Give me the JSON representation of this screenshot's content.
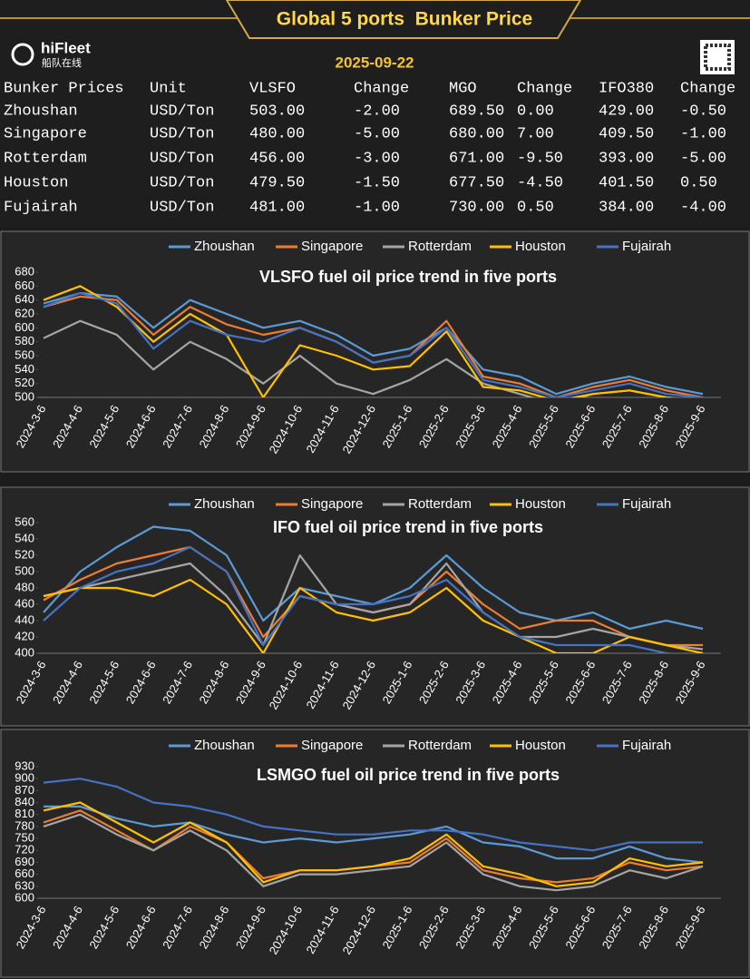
{
  "header": {
    "title": "Global 5 ports  Bunker Price",
    "logo": "hiFleet",
    "logo_sub": "船队在线",
    "date": "2025-09-22"
  },
  "table": {
    "headers": [
      "Bunker Prices",
      "Unit",
      "VLSFO",
      "Change",
      "MGO",
      "Change",
      "IFO380",
      "Change"
    ],
    "rows": [
      [
        "Zhoushan",
        "USD/Ton",
        "503.00",
        "-2.00",
        "689.50",
        "0.00",
        "429.00",
        "-0.50"
      ],
      [
        "Singapore",
        "USD/Ton",
        "480.00",
        "-5.00",
        "680.00",
        "7.00",
        "409.50",
        "-1.00"
      ],
      [
        "Rotterdam",
        "USD/Ton",
        "456.00",
        "-3.00",
        "671.00",
        "-9.50",
        "393.00",
        "-5.00"
      ],
      [
        "Houston",
        "USD/Ton",
        "479.50",
        "-1.50",
        "677.50",
        "-4.50",
        "401.50",
        "0.50"
      ],
      [
        "Fujairah",
        "USD/Ton",
        "481.00",
        "-1.00",
        "730.00",
        "0.50",
        "384.00",
        "-4.00"
      ]
    ]
  },
  "chart_data": [
    {
      "type": "line",
      "title": "VLSFO fuel oil price trend in five ports",
      "categories": [
        "2024-3-6",
        "2024-4-6",
        "2024-5-6",
        "2024-6-6",
        "2024-7-6",
        "2024-8-6",
        "2024-9-6",
        "2024-10-6",
        "2024-11-6",
        "2024-12-6",
        "2025-1-6",
        "2025-2-6",
        "2025-3-6",
        "2025-4-6",
        "2025-5-6",
        "2025-6-6",
        "2025-7-6",
        "2025-8-6",
        "2025-9-6"
      ],
      "ylim": [
        500,
        680
      ],
      "yticks": [
        500,
        520,
        540,
        560,
        580,
        600,
        620,
        640,
        660,
        680
      ],
      "series": [
        {
          "name": "Zhoushan",
          "color": "#5b9bd5",
          "values": [
            635,
            650,
            645,
            600,
            640,
            620,
            600,
            610,
            590,
            560,
            570,
            600,
            540,
            530,
            505,
            520,
            530,
            515,
            505
          ]
        },
        {
          "name": "Singapore",
          "color": "#ed7d31",
          "values": [
            630,
            645,
            640,
            590,
            630,
            605,
            590,
            600,
            580,
            550,
            560,
            610,
            530,
            520,
            500,
            515,
            525,
            510,
            500
          ]
        },
        {
          "name": "Rotterdam",
          "color": "#a5a5a5",
          "values": [
            585,
            610,
            590,
            540,
            580,
            555,
            520,
            560,
            520,
            505,
            525,
            555,
            520,
            505,
            490,
            505,
            510,
            500,
            495
          ]
        },
        {
          "name": "Houston",
          "color": "#ffc000",
          "values": [
            640,
            660,
            630,
            580,
            620,
            590,
            500,
            575,
            560,
            540,
            545,
            595,
            515,
            510,
            495,
            505,
            510,
            500,
            495
          ]
        },
        {
          "name": "Fujairah",
          "color": "#4472c4",
          "values": [
            630,
            650,
            635,
            570,
            610,
            590,
            580,
            600,
            580,
            550,
            560,
            600,
            525,
            515,
            500,
            510,
            520,
            505,
            500
          ]
        }
      ]
    },
    {
      "type": "line",
      "title": "IFO fuel oil price trend in five ports",
      "categories": [
        "2024-3-6",
        "2024-4-6",
        "2024-5-6",
        "2024-6-6",
        "2024-7-6",
        "2024-8-6",
        "2024-9-6",
        "2024-10-6",
        "2024-11-6",
        "2024-12-6",
        "2025-1-6",
        "2025-2-6",
        "2025-3-6",
        "2025-4-6",
        "2025-5-6",
        "2025-6-6",
        "2025-7-6",
        "2025-8-6",
        "2025-9-6"
      ],
      "ylim": [
        400,
        560
      ],
      "yticks": [
        400,
        420,
        440,
        460,
        480,
        500,
        520,
        540,
        560
      ],
      "series": [
        {
          "name": "Zhoushan",
          "color": "#5b9bd5",
          "values": [
            450,
            500,
            530,
            555,
            550,
            520,
            440,
            480,
            470,
            460,
            480,
            520,
            480,
            450,
            440,
            450,
            430,
            440,
            430
          ]
        },
        {
          "name": "Singapore",
          "color": "#ed7d31",
          "values": [
            465,
            490,
            510,
            520,
            530,
            500,
            420,
            470,
            460,
            450,
            460,
            500,
            460,
            430,
            440,
            440,
            420,
            410,
            410
          ]
        },
        {
          "name": "Rotterdam",
          "color": "#a5a5a5",
          "values": [
            470,
            480,
            490,
            500,
            510,
            470,
            410,
            520,
            460,
            450,
            460,
            510,
            450,
            420,
            420,
            430,
            420,
            410,
            405
          ]
        },
        {
          "name": "Houston",
          "color": "#ffc000",
          "values": [
            470,
            480,
            480,
            470,
            490,
            460,
            400,
            480,
            450,
            440,
            450,
            480,
            440,
            420,
            400,
            400,
            420,
            410,
            400
          ]
        },
        {
          "name": "Fujairah",
          "color": "#4472c4",
          "values": [
            440,
            480,
            500,
            510,
            530,
            500,
            410,
            470,
            460,
            460,
            470,
            490,
            450,
            420,
            410,
            410,
            410,
            400,
            395
          ]
        }
      ]
    },
    {
      "type": "line",
      "title": "LSMGO fuel oil price trend in five ports",
      "categories": [
        "2024-3-6",
        "2024-4-6",
        "2024-5-6",
        "2024-6-6",
        "2024-7-6",
        "2024-8-6",
        "2024-9-6",
        "2024-10-6",
        "2024-11-6",
        "2024-12-6",
        "2025-1-6",
        "2025-2-6",
        "2025-3-6",
        "2025-4-6",
        "2025-5-6",
        "2025-6-6",
        "2025-7-6",
        "2025-8-6",
        "2025-9-6"
      ],
      "ylim": [
        600,
        930
      ],
      "yticks": [
        600,
        630,
        660,
        690,
        720,
        750,
        780,
        810,
        840,
        870,
        900,
        930
      ],
      "series": [
        {
          "name": "Zhoushan",
          "color": "#5b9bd5",
          "values": [
            830,
            830,
            800,
            780,
            790,
            760,
            740,
            750,
            740,
            750,
            760,
            780,
            740,
            730,
            700,
            700,
            730,
            700,
            690
          ]
        },
        {
          "name": "Singapore",
          "color": "#ed7d31",
          "values": [
            790,
            820,
            770,
            720,
            780,
            740,
            650,
            670,
            670,
            680,
            690,
            750,
            670,
            650,
            640,
            650,
            690,
            670,
            680
          ]
        },
        {
          "name": "Rotterdam",
          "color": "#a5a5a5",
          "values": [
            780,
            810,
            760,
            720,
            770,
            720,
            630,
            660,
            660,
            670,
            680,
            740,
            660,
            630,
            620,
            630,
            670,
            650,
            680
          ]
        },
        {
          "name": "Houston",
          "color": "#ffc000",
          "values": [
            820,
            840,
            790,
            740,
            790,
            740,
            640,
            670,
            670,
            680,
            700,
            760,
            680,
            660,
            630,
            640,
            700,
            680,
            690
          ]
        },
        {
          "name": "Fujairah",
          "color": "#4472c4",
          "values": [
            890,
            900,
            880,
            840,
            830,
            810,
            780,
            770,
            760,
            760,
            770,
            770,
            760,
            740,
            730,
            720,
            740,
            740,
            740
          ]
        }
      ]
    }
  ]
}
